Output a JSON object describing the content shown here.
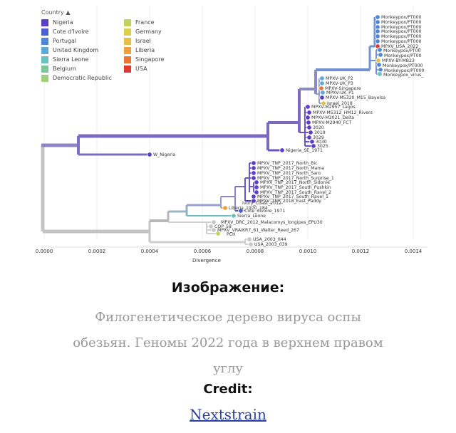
{
  "legend": {
    "title": "Country",
    "columns": [
      [
        {
          "label": "Nigeria",
          "color": "#5b3fc4"
        },
        {
          "label": "Cote d'Ivoire",
          "color": "#4a5fd0"
        },
        {
          "label": "Portugal",
          "color": "#4f86d8"
        },
        {
          "label": "United Kingdom",
          "color": "#60a8d6"
        },
        {
          "label": "Sierra Leone",
          "color": "#6cc0bf"
        },
        {
          "label": "Belgium",
          "color": "#7cc79a"
        },
        {
          "label": "Democratic Republic c",
          "color": "#9fcf7a"
        }
      ],
      [
        {
          "label": "France",
          "color": "#c2d35c"
        },
        {
          "label": "Germany",
          "color": "#dccf4e"
        },
        {
          "label": "Israel",
          "color": "#e8bf46"
        },
        {
          "label": "Liberia",
          "color": "#ec9f3e"
        },
        {
          "label": "Singapore",
          "color": "#e87637"
        },
        {
          "label": "USA",
          "color": "#e0392f"
        }
      ]
    ]
  },
  "axis": {
    "label": "Divergence",
    "ticks": [
      "0.0000",
      "0.0002",
      "0.0004",
      "0.0006",
      "0.0008",
      "0.0010",
      "0.0012",
      "0.0014"
    ]
  },
  "tips": {
    "monkeypox_pt": [
      "Monkeypox/PT000",
      "Monkeypox/PT000",
      "Monkeypox/PT000",
      "Monkeypox/PT000",
      "Monkeypox/PT000",
      "Monkeypox/PT000",
      "Monkeypox/PT000"
    ],
    "usa_2022": "MPXV_USA_2022_",
    "late_top": [
      "Monkeypox/PT00",
      "Monkeypox/PT00",
      "MPXV-BY-MB23",
      "Monkeypox/PT000",
      "Monkeypox_virus_"
    ],
    "uk_group": [
      "MPXV-UK_P2",
      "MPXV-UK_P3",
      "MPXV-Singapore",
      "MPXV-UK_P1",
      "MPXV-M5320_M15_Bayelsa",
      "Israel_2018"
    ],
    "nigeria_group": [
      "MPXV-M2957_Lagos",
      "MPXV-M5312_HM12_Rivers",
      "MPXV-M3021_Delta",
      "MPXV-M2940_FCT",
      "3020",
      "3019",
      "3029",
      "3030",
      "3025"
    ],
    "nigeria_se": "Nigeria_SE_1971",
    "w_nigeria": "W_Nigeria",
    "tnp": [
      "MPXV_TNP_2017_North_Bic",
      "MPXV_TNP_2017_North_Mama",
      "MPXV_TNP_2017_North_Saro",
      "MPXV_TNP_2017_North_Surprise_1",
      "MPXV_TNP_2017_North_Sidonie",
      "MPXV_TNP_2017_South_Pushkin",
      "MPXV_TNP_2017_South_Ravel_2",
      "MPXV_TNP_2017_South_Ravel_1",
      "MPXV_TNP_2018_East_Paddy"
    ],
    "lower": [
      "Ivory_Coast_2012",
      "Liberia_1970_184",
      "Cote_divoire_1971",
      "Sierra_Leone",
      "MPXV_DRC_2012_Malacomys_longipes_EPU30",
      "COP_58",
      "MPXV_VRAIKR7_61_Walter_Reed_267",
      "PCH",
      "USA_2003_044",
      "USA_2003_039"
    ]
  },
  "caption": {
    "title": "Изображение:",
    "description": "Филогенетическое дерево вируса оспы обезьян. Геномы 2022 года в верхнем правом углу",
    "credit_label": "Credit:",
    "credit_link": "Nextstrain"
  }
}
